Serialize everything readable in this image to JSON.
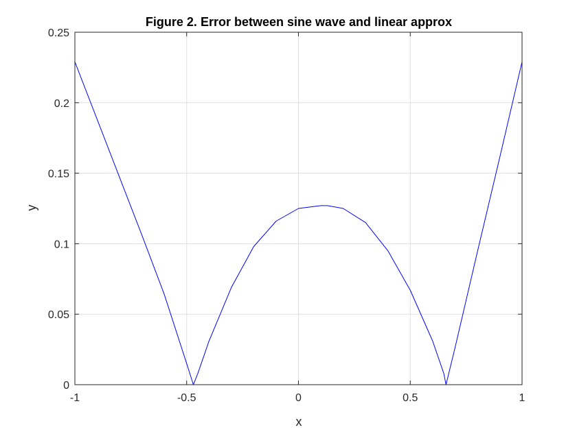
{
  "chart_data": {
    "type": "line",
    "title": "Figure 2. Error between sine wave and linear approx",
    "xlabel": "x",
    "ylabel": "y",
    "xlim": [
      -1,
      1
    ],
    "ylim": [
      0,
      0.25
    ],
    "x_ticks": [
      "-1",
      "-0.5",
      "0",
      "0.5",
      "1"
    ],
    "y_ticks": [
      "0",
      "0.05",
      "0.1",
      "0.15",
      "0.2",
      "0.25"
    ],
    "grid": true,
    "series": [
      {
        "color": "#0000ff",
        "x": [
          -1.0,
          -0.9,
          -0.8,
          -0.7,
          -0.6,
          -0.5,
          -0.47,
          -0.45,
          -0.4,
          -0.3,
          -0.2,
          -0.1,
          0.0,
          0.1,
          0.13,
          0.2,
          0.3,
          0.4,
          0.5,
          0.6,
          0.65,
          0.66,
          0.7,
          0.8,
          0.9,
          1.0
        ],
        "y": [
          0.229,
          0.188,
          0.147,
          0.106,
          0.064,
          0.015,
          0.0,
          0.008,
          0.031,
          0.069,
          0.098,
          0.116,
          0.125,
          0.127,
          0.127,
          0.125,
          0.115,
          0.095,
          0.067,
          0.031,
          0.008,
          0.0,
          0.026,
          0.094,
          0.161,
          0.229
        ]
      }
    ]
  }
}
